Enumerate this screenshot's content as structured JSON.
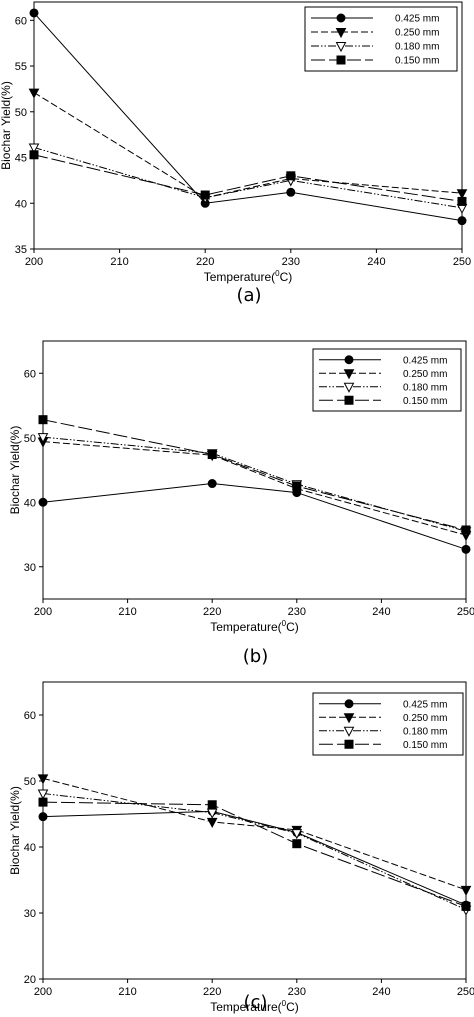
{
  "legend": {
    "labels": [
      "0.425 mm",
      "0.250 mm",
      "0.180 mm",
      "0.150 mm"
    ],
    "markers": [
      "circle-filled",
      "triangle-down-filled",
      "triangle-down-open",
      "square-filled"
    ],
    "dashes": [
      "solid",
      "dashed",
      "dash-dot-dot",
      "long-dash"
    ]
  },
  "chart_data": [
    {
      "type": "line",
      "panel_label": "(a)",
      "xlabel": "Temperature(°C)",
      "xlabel_parts": {
        "pre": "Temperature(",
        "sup": "0",
        "post": "C)"
      },
      "ylabel": "Biochar Yield(%)",
      "x": [
        200,
        220,
        230,
        250
      ],
      "xlim": [
        200,
        250
      ],
      "ylim": [
        35,
        62
      ],
      "xticks": [
        "200",
        "210",
        "220",
        "230",
        "240",
        "250"
      ],
      "yticks": [
        "35",
        "40",
        "45",
        "50",
        "55",
        "60"
      ],
      "legend_position": "top-right",
      "series": [
        {
          "name": "0.425 mm",
          "values": [
            60.8,
            40.0,
            41.2,
            38.1
          ]
        },
        {
          "name": "0.250 mm",
          "values": [
            52.1,
            40.6,
            42.7,
            41.1
          ]
        },
        {
          "name": "0.180 mm",
          "values": [
            46.1,
            40.6,
            42.5,
            39.5
          ]
        },
        {
          "name": "0.150 mm",
          "values": [
            45.3,
            40.9,
            43.0,
            40.2
          ]
        }
      ]
    },
    {
      "type": "line",
      "panel_label": "(b)",
      "xlabel": "Temperature(°C)",
      "xlabel_parts": {
        "pre": "Temperature(",
        "sup": "0",
        "post": "C)"
      },
      "ylabel": "Biochar Yield(%)",
      "x": [
        200,
        220,
        230,
        250
      ],
      "xlim": [
        200,
        250
      ],
      "ylim": [
        25,
        65
      ],
      "xticks": [
        "200",
        "210",
        "220",
        "230",
        "240",
        "250"
      ],
      "yticks": [
        "30",
        "40",
        "50",
        "60"
      ],
      "legend_position": "top-right",
      "series": [
        {
          "name": "0.425 mm",
          "values": [
            40.0,
            42.9,
            41.5,
            32.7
          ]
        },
        {
          "name": "0.250 mm",
          "values": [
            49.4,
            47.3,
            42.1,
            34.9
          ]
        },
        {
          "name": "0.180 mm",
          "values": [
            50.1,
            47.6,
            42.8,
            35.5
          ]
        },
        {
          "name": "0.150 mm",
          "values": [
            52.8,
            47.4,
            42.5,
            35.7
          ]
        }
      ]
    },
    {
      "type": "line",
      "panel_label": "(c)",
      "xlabel": "Temperature(°C)",
      "xlabel_parts": {
        "pre": "Temperature(",
        "sup": "0",
        "post": "C)"
      },
      "ylabel": "Biochar Yield(%)",
      "x": [
        200,
        220,
        230,
        250
      ],
      "xlim": [
        200,
        250
      ],
      "ylim": [
        20,
        65
      ],
      "xticks": [
        "200",
        "210",
        "220",
        "230",
        "240",
        "250"
      ],
      "yticks": [
        "20",
        "30",
        "40",
        "50",
        "60"
      ],
      "legend_position": "top-right",
      "series": [
        {
          "name": "0.425 mm",
          "values": [
            44.6,
            45.4,
            42.2,
            31.2
          ]
        },
        {
          "name": "0.250 mm",
          "values": [
            50.4,
            43.8,
            42.6,
            33.5
          ]
        },
        {
          "name": "0.180 mm",
          "values": [
            48.1,
            45.2,
            42.1,
            30.5
          ]
        },
        {
          "name": "0.150 mm",
          "values": [
            46.8,
            46.4,
            40.5,
            31.0
          ]
        }
      ]
    }
  ]
}
